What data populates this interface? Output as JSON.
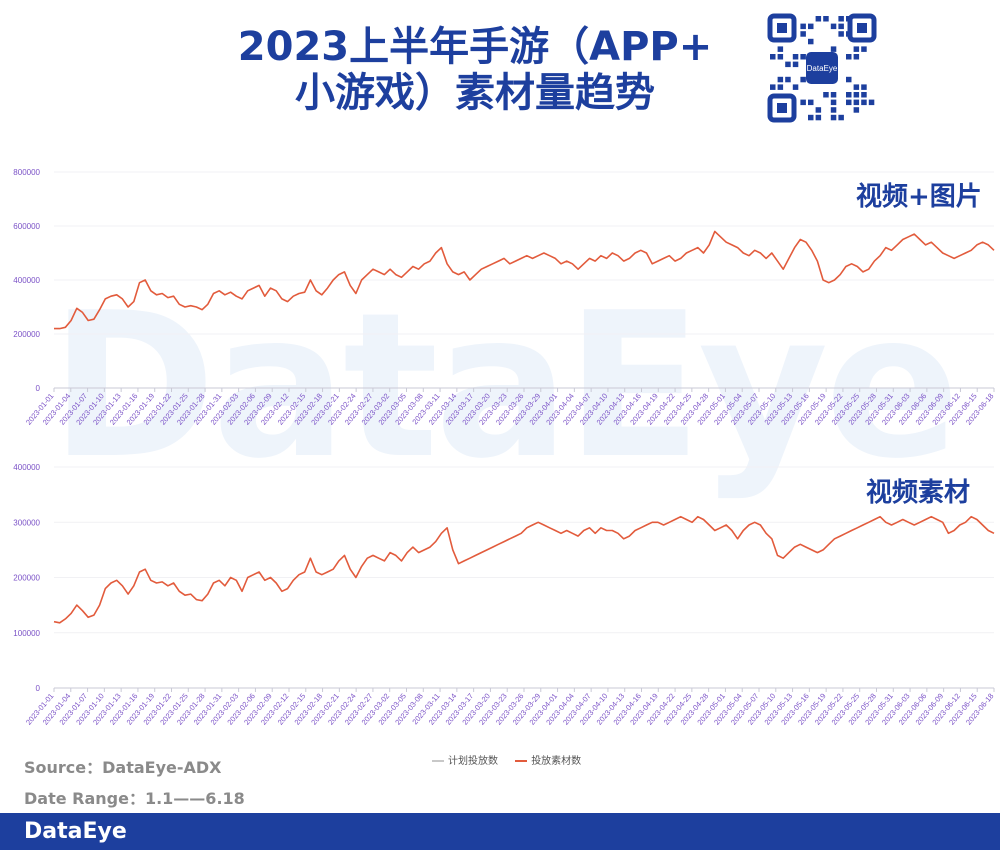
{
  "header": {
    "title_line1": "2023上半年手游（APP+",
    "title_line2": "小游戏）素材量趋势",
    "qr_brand": "DataEye"
  },
  "watermark": "DataEye",
  "source": "Source：DataEye-ADX",
  "date_range": "Date Range：1.1——6.18",
  "footer_logo": "DataEye",
  "legend": [
    {
      "name": "计划投放数",
      "color": "#c8c8c8"
    },
    {
      "name": "投放素材数",
      "color": "#e25b3c"
    }
  ],
  "colors": {
    "brand": "#1d3f9e",
    "line": "#e25b3c",
    "axis_text": "#7b52c7"
  },
  "chart_data": [
    {
      "type": "line",
      "label": "视频+图片",
      "ylim": [
        0,
        800000
      ],
      "yticks": [
        0,
        200000,
        400000,
        600000,
        800000
      ],
      "ytick_labels": [
        "0",
        "200000",
        "400000",
        "600000",
        "800000"
      ],
      "x_start": "2023-01-01",
      "x_end": "2023-06-18",
      "xtick_labels": [
        "2023-01-01",
        "2023-01-04",
        "2023-01-07",
        "2023-01-10",
        "2023-01-13",
        "2023-01-16",
        "2023-01-19",
        "2023-01-22",
        "2023-01-25",
        "2023-01-28",
        "2023-01-31",
        "2023-02-03",
        "2023-02-06",
        "2023-02-09",
        "2023-02-12",
        "2023-02-15",
        "2023-02-18",
        "2023-02-21",
        "2023-02-24",
        "2023-02-27",
        "2023-03-02",
        "2023-03-05",
        "2023-03-08",
        "2023-03-11",
        "2023-03-14",
        "2023-03-17",
        "2023-03-20",
        "2023-03-23",
        "2023-03-26",
        "2023-03-29",
        "2023-04-01",
        "2023-04-04",
        "2023-04-07",
        "2023-04-10",
        "2023-04-13",
        "2023-04-16",
        "2023-04-19",
        "2023-04-22",
        "2023-04-25",
        "2023-04-28",
        "2023-05-01",
        "2023-05-04",
        "2023-05-07",
        "2023-05-10",
        "2023-05-13",
        "2023-05-16",
        "2023-05-19",
        "2023-05-22",
        "2023-05-25",
        "2023-05-28",
        "2023-05-31",
        "2023-06-03",
        "2023-06-06",
        "2023-06-09",
        "2023-06-12",
        "2023-06-15",
        "2023-06-18"
      ],
      "series": [
        {
          "name": "投放素材数",
          "values": [
            220000,
            220000,
            225000,
            250000,
            295000,
            280000,
            250000,
            255000,
            290000,
            330000,
            340000,
            345000,
            330000,
            300000,
            320000,
            390000,
            400000,
            360000,
            345000,
            350000,
            335000,
            340000,
            310000,
            300000,
            305000,
            300000,
            290000,
            310000,
            350000,
            360000,
            345000,
            355000,
            340000,
            330000,
            360000,
            370000,
            380000,
            340000,
            370000,
            360000,
            330000,
            320000,
            340000,
            350000,
            355000,
            400000,
            360000,
            345000,
            370000,
            400000,
            420000,
            430000,
            380000,
            350000,
            400000,
            420000,
            440000,
            430000,
            420000,
            440000,
            420000,
            410000,
            430000,
            450000,
            440000,
            460000,
            470000,
            500000,
            520000,
            460000,
            430000,
            420000,
            430000,
            400000,
            420000,
            440000,
            450000,
            460000,
            470000,
            480000,
            460000,
            470000,
            480000,
            490000,
            480000,
            490000,
            500000,
            490000,
            480000,
            460000,
            470000,
            460000,
            440000,
            460000,
            480000,
            470000,
            490000,
            480000,
            500000,
            490000,
            470000,
            480000,
            500000,
            510000,
            500000,
            460000,
            470000,
            480000,
            490000,
            470000,
            480000,
            500000,
            510000,
            520000,
            500000,
            530000,
            580000,
            560000,
            540000,
            530000,
            520000,
            500000,
            490000,
            510000,
            500000,
            480000,
            500000,
            470000,
            440000,
            480000,
            520000,
            550000,
            540000,
            510000,
            470000,
            400000,
            390000,
            400000,
            420000,
            450000,
            460000,
            450000,
            430000,
            440000,
            470000,
            490000,
            520000,
            510000,
            530000,
            550000,
            560000,
            570000,
            550000,
            530000,
            540000,
            520000,
            500000,
            490000,
            480000,
            490000,
            500000,
            510000,
            530000,
            540000,
            530000,
            510000
          ]
        }
      ]
    },
    {
      "type": "line",
      "label": "视频素材",
      "ylim": [
        0,
        400000
      ],
      "yticks": [
        0,
        100000,
        200000,
        300000,
        400000
      ],
      "ytick_labels": [
        "0",
        "100000",
        "200000",
        "300000",
        "400000"
      ],
      "x_start": "2023-01-01",
      "x_end": "2023-06-18",
      "xtick_labels": [
        "2023-01-01",
        "2023-01-04",
        "2023-01-07",
        "2023-01-10",
        "2023-01-13",
        "2023-01-16",
        "2023-01-19",
        "2023-01-22",
        "2023-01-25",
        "2023-01-28",
        "2023-01-31",
        "2023-02-03",
        "2023-02-06",
        "2023-02-09",
        "2023-02-12",
        "2023-02-15",
        "2023-02-18",
        "2023-02-21",
        "2023-02-24",
        "2023-02-27",
        "2023-03-02",
        "2023-03-05",
        "2023-03-08",
        "2023-03-11",
        "2023-03-14",
        "2023-03-17",
        "2023-03-20",
        "2023-03-23",
        "2023-03-26",
        "2023-03-29",
        "2023-04-01",
        "2023-04-04",
        "2023-04-07",
        "2023-04-10",
        "2023-04-13",
        "2023-04-16",
        "2023-04-19",
        "2023-04-22",
        "2023-04-25",
        "2023-04-28",
        "2023-05-01",
        "2023-05-04",
        "2023-05-07",
        "2023-05-10",
        "2023-05-13",
        "2023-05-16",
        "2023-05-19",
        "2023-05-22",
        "2023-05-25",
        "2023-05-28",
        "2023-05-31",
        "2023-06-03",
        "2023-06-06",
        "2023-06-09",
        "2023-06-12",
        "2023-06-15",
        "2023-06-18"
      ],
      "series": [
        {
          "name": "投放素材数",
          "values": [
            120000,
            118000,
            125000,
            135000,
            150000,
            140000,
            128000,
            132000,
            150000,
            180000,
            190000,
            195000,
            185000,
            170000,
            185000,
            210000,
            215000,
            195000,
            190000,
            192000,
            185000,
            190000,
            175000,
            168000,
            170000,
            160000,
            158000,
            170000,
            190000,
            195000,
            185000,
            200000,
            195000,
            175000,
            200000,
            205000,
            210000,
            195000,
            200000,
            190000,
            175000,
            180000,
            195000,
            205000,
            210000,
            235000,
            210000,
            205000,
            210000,
            215000,
            230000,
            240000,
            215000,
            200000,
            220000,
            235000,
            240000,
            235000,
            230000,
            245000,
            240000,
            230000,
            245000,
            255000,
            245000,
            250000,
            255000,
            265000,
            280000,
            290000,
            250000,
            225000,
            230000,
            235000,
            240000,
            245000,
            250000,
            255000,
            260000,
            265000,
            270000,
            275000,
            280000,
            290000,
            295000,
            300000,
            295000,
            290000,
            285000,
            280000,
            285000,
            280000,
            275000,
            285000,
            290000,
            280000,
            290000,
            285000,
            285000,
            280000,
            270000,
            275000,
            285000,
            290000,
            295000,
            300000,
            300000,
            295000,
            300000,
            305000,
            310000,
            305000,
            300000,
            310000,
            305000,
            295000,
            285000,
            290000,
            295000,
            285000,
            270000,
            285000,
            295000,
            300000,
            295000,
            280000,
            270000,
            240000,
            235000,
            245000,
            255000,
            260000,
            255000,
            250000,
            245000,
            250000,
            260000,
            270000,
            275000,
            280000,
            285000,
            290000,
            295000,
            300000,
            305000,
            310000,
            300000,
            295000,
            300000,
            305000,
            300000,
            295000,
            300000,
            305000,
            310000,
            305000,
            300000,
            280000,
            285000,
            295000,
            300000,
            310000,
            305000,
            295000,
            285000,
            280000
          ]
        }
      ]
    }
  ]
}
